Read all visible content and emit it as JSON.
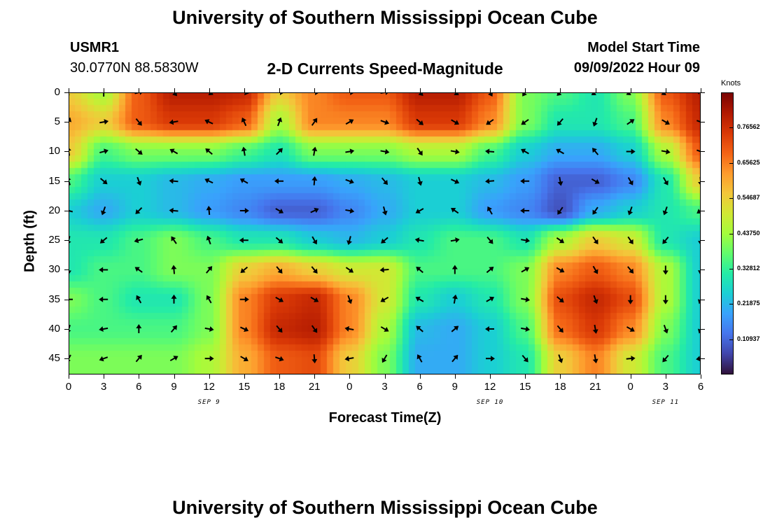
{
  "header": {
    "title": "University of Southern Mississippi Ocean Cube",
    "station": "USMR1",
    "coords": "30.0770N  88.5830W",
    "chart_title": "2-D Currents Speed-Magnitude",
    "model_start_label": "Model Start Time",
    "model_start_value": "09/09/2022 Hour 09"
  },
  "footer": {
    "title": "University of Southern Mississippi Ocean Cube"
  },
  "colors": {
    "scale": [
      "#30123b",
      "#4145ab",
      "#4675ed",
      "#39a2fc",
      "#1bcfd4",
      "#24eca6",
      "#61fc6c",
      "#a4fc3b",
      "#d1e834",
      "#f3c63a",
      "#fe9b2d",
      "#f36315",
      "#d93806",
      "#b11901",
      "#7a0403"
    ]
  },
  "chart_data": {
    "type": "heatmap",
    "xlabel": "Forecast Time(Z)",
    "ylabel": "Depth (ft)",
    "x_ticks": [
      "0",
      "3",
      "6",
      "9",
      "12",
      "15",
      "18",
      "21",
      "0",
      "3",
      "6",
      "9",
      "12",
      "15",
      "18",
      "21",
      "0",
      "3",
      "6"
    ],
    "x_range_hours": [
      0,
      54
    ],
    "date_labels": [
      {
        "label": "SEP 9",
        "hour": 12
      },
      {
        "label": "SEP 10",
        "hour": 36
      },
      {
        "label": "SEP 11",
        "hour": 51
      }
    ],
    "y_ticks": [
      "0",
      "5",
      "10",
      "15",
      "20",
      "25",
      "30",
      "35",
      "40",
      "45"
    ],
    "y_range_ft": [
      0,
      47.7
    ],
    "colorbar": {
      "label": "Knots",
      "ticks": [
        "0.76562",
        "0.65625",
        "0.54687",
        "0.43750",
        "0.32812",
        "0.21875",
        "0.10937"
      ],
      "tick_values": [
        0.76562,
        0.65625,
        0.54687,
        0.4375,
        0.32812,
        0.21875,
        0.10937
      ],
      "range": [
        0.0,
        0.875
      ]
    },
    "speed_knots": [
      {
        "depth": 0,
        "values": [
          0.55,
          0.45,
          0.7,
          0.8,
          0.8,
          0.78,
          0.55,
          0.65,
          0.7,
          0.7,
          0.8,
          0.8,
          0.7,
          0.4,
          0.35,
          0.3,
          0.4,
          0.7,
          0.8
        ]
      },
      {
        "depth": 5,
        "values": [
          0.6,
          0.55,
          0.7,
          0.75,
          0.75,
          0.7,
          0.45,
          0.65,
          0.65,
          0.65,
          0.75,
          0.75,
          0.65,
          0.4,
          0.3,
          0.3,
          0.35,
          0.65,
          0.78
        ]
      },
      {
        "depth": 10,
        "values": [
          0.55,
          0.35,
          0.4,
          0.4,
          0.4,
          0.35,
          0.3,
          0.4,
          0.4,
          0.4,
          0.45,
          0.45,
          0.35,
          0.25,
          0.2,
          0.2,
          0.25,
          0.45,
          0.7
        ]
      },
      {
        "depth": 15,
        "values": [
          0.35,
          0.25,
          0.25,
          0.22,
          0.2,
          0.18,
          0.18,
          0.18,
          0.2,
          0.22,
          0.25,
          0.25,
          0.22,
          0.18,
          0.1,
          0.1,
          0.15,
          0.3,
          0.55
        ]
      },
      {
        "depth": 20,
        "values": [
          0.25,
          0.2,
          0.25,
          0.22,
          0.18,
          0.15,
          0.1,
          0.1,
          0.15,
          0.2,
          0.25,
          0.25,
          0.18,
          0.15,
          0.08,
          0.2,
          0.25,
          0.3,
          0.35
        ]
      },
      {
        "depth": 25,
        "values": [
          0.3,
          0.3,
          0.35,
          0.4,
          0.35,
          0.3,
          0.3,
          0.25,
          0.22,
          0.25,
          0.3,
          0.35,
          0.35,
          0.3,
          0.45,
          0.55,
          0.5,
          0.3,
          0.25
        ]
      },
      {
        "depth": 30,
        "values": [
          0.3,
          0.35,
          0.35,
          0.4,
          0.4,
          0.55,
          0.6,
          0.55,
          0.5,
          0.5,
          0.35,
          0.35,
          0.35,
          0.4,
          0.65,
          0.7,
          0.65,
          0.45,
          0.25
        ]
      },
      {
        "depth": 35,
        "values": [
          0.4,
          0.35,
          0.3,
          0.3,
          0.4,
          0.65,
          0.75,
          0.78,
          0.65,
          0.5,
          0.3,
          0.25,
          0.3,
          0.4,
          0.72,
          0.78,
          0.72,
          0.45,
          0.25
        ]
      },
      {
        "depth": 40,
        "values": [
          0.35,
          0.35,
          0.35,
          0.35,
          0.4,
          0.65,
          0.78,
          0.8,
          0.65,
          0.45,
          0.22,
          0.2,
          0.25,
          0.35,
          0.68,
          0.75,
          0.65,
          0.4,
          0.25
        ]
      },
      {
        "depth": 45,
        "values": [
          0.4,
          0.4,
          0.4,
          0.4,
          0.45,
          0.6,
          0.7,
          0.72,
          0.55,
          0.4,
          0.2,
          0.2,
          0.25,
          0.3,
          0.55,
          0.65,
          0.5,
          0.35,
          0.25
        ]
      }
    ],
    "arrow_directions_deg": [
      {
        "depth": 0,
        "values": [
          230,
          0,
          75,
          140,
          120,
          100,
          90,
          90,
          90,
          80,
          135,
          125,
          150,
          215,
          225,
          235,
          240,
          240,
          300
        ]
      },
      {
        "depth": 5,
        "values": [
          20,
          80,
          140,
          260,
          295,
          335,
          20,
          35,
          60,
          110,
          130,
          120,
          235,
          235,
          220,
          200,
          55,
          120,
          110
        ]
      },
      {
        "depth": 10,
        "values": [
          350,
          75,
          130,
          300,
          310,
          350,
          45,
          10,
          80,
          100,
          145,
          100,
          275,
          300,
          300,
          320,
          90,
          100,
          110
        ]
      },
      {
        "depth": 15,
        "values": [
          340,
          130,
          160,
          275,
          295,
          300,
          270,
          5,
          110,
          140,
          165,
          115,
          265,
          270,
          170,
          120,
          150,
          150,
          175
        ]
      },
      {
        "depth": 20,
        "values": [
          285,
          200,
          225,
          275,
          355,
          90,
          120,
          65,
          100,
          165,
          240,
          305,
          330,
          270,
          215,
          215,
          200,
          200,
          235
        ]
      },
      {
        "depth": 25,
        "values": [
          195,
          230,
          255,
          325,
          340,
          270,
          130,
          150,
          195,
          230,
          280,
          80,
          140,
          100,
          125,
          145,
          145,
          220,
          180
        ]
      },
      {
        "depth": 30,
        "values": [
          180,
          270,
          305,
          355,
          40,
          230,
          140,
          140,
          125,
          265,
          310,
          0,
          50,
          60,
          120,
          150,
          140,
          180,
          185
        ]
      },
      {
        "depth": 35,
        "values": [
          270,
          270,
          330,
          0,
          330,
          90,
          120,
          120,
          160,
          240,
          300,
          10,
          60,
          100,
          130,
          160,
          180,
          180,
          200
        ]
      },
      {
        "depth": 40,
        "values": [
          200,
          260,
          0,
          40,
          100,
          115,
          140,
          145,
          280,
          120,
          310,
          50,
          270,
          100,
          140,
          170,
          120,
          160,
          200
        ]
      },
      {
        "depth": 45,
        "values": [
          210,
          250,
          40,
          60,
          90,
          120,
          110,
          175,
          260,
          210,
          330,
          40,
          90,
          140,
          160,
          170,
          85,
          220,
          260
        ]
      }
    ]
  }
}
